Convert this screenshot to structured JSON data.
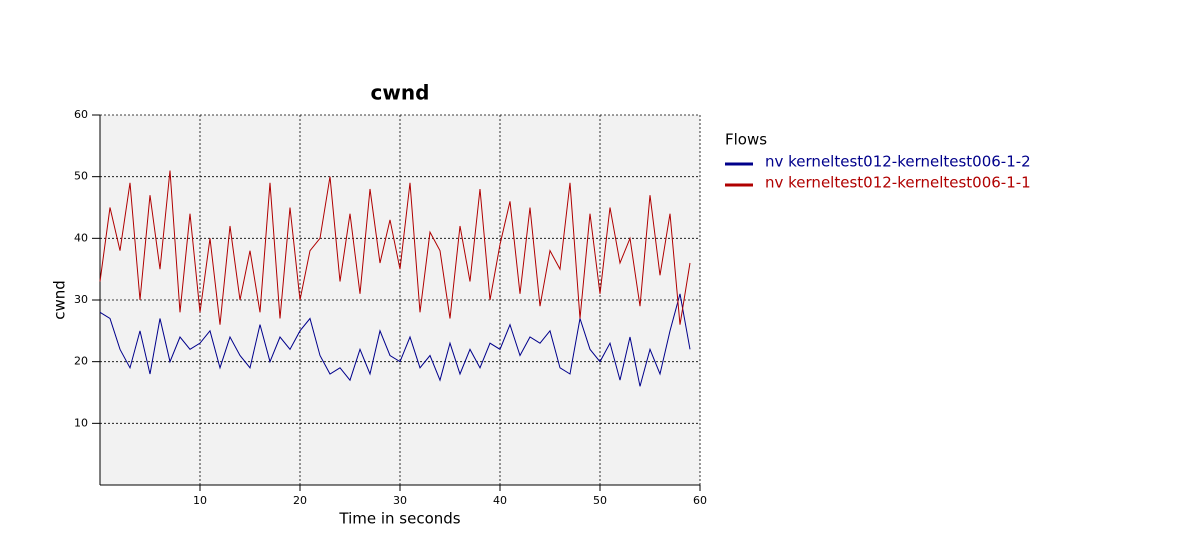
{
  "chart_data": {
    "type": "line",
    "title": "cwnd",
    "x_label": "Time in seconds",
    "y_label": "cwnd",
    "legend_title": "Flows",
    "x": [
      0,
      1,
      2,
      3,
      4,
      5,
      6,
      7,
      8,
      9,
      10,
      11,
      12,
      13,
      14,
      15,
      16,
      17,
      18,
      19,
      20,
      21,
      22,
      23,
      24,
      25,
      26,
      27,
      28,
      29,
      30,
      31,
      32,
      33,
      34,
      35,
      36,
      37,
      38,
      39,
      40,
      41,
      42,
      43,
      44,
      45,
      46,
      47,
      48,
      49,
      50,
      51,
      52,
      53,
      54,
      55,
      56,
      57,
      58,
      59
    ],
    "series": [
      {
        "name": "nv kerneltest012-kerneltest006-1-2",
        "color": "#00008b",
        "values": [
          28,
          27,
          22,
          19,
          25,
          18,
          27,
          20,
          24,
          22,
          23,
          25,
          19,
          24,
          21,
          19,
          26,
          20,
          24,
          22,
          25,
          27,
          21,
          18,
          19,
          17,
          22,
          18,
          25,
          21,
          20,
          24,
          19,
          21,
          17,
          23,
          18,
          22,
          19,
          23,
          22,
          26,
          21,
          24,
          23,
          25,
          19,
          18,
          27,
          22,
          20,
          23,
          17,
          24,
          16,
          22,
          18,
          25,
          31,
          22
        ]
      },
      {
        "name": "nv kerneltest012-kerneltest006-1-1",
        "color": "#b00000",
        "values": [
          33,
          45,
          38,
          49,
          30,
          47,
          35,
          51,
          28,
          44,
          28,
          40,
          26,
          42,
          30,
          38,
          28,
          49,
          27,
          45,
          30,
          38,
          40,
          50,
          33,
          44,
          31,
          48,
          36,
          43,
          35,
          49,
          28,
          41,
          38,
          27,
          42,
          33,
          48,
          30,
          39,
          46,
          31,
          45,
          29,
          38,
          35,
          49,
          27,
          44,
          31,
          45,
          36,
          40,
          29,
          47,
          34,
          44,
          26,
          36
        ]
      }
    ],
    "xlim": [
      0,
      60
    ],
    "ylim": [
      0,
      60
    ],
    "xticks": [
      10,
      20,
      30,
      40,
      50,
      60
    ],
    "yticks": [
      10,
      20,
      30,
      40,
      50,
      60
    ],
    "grid": true
  }
}
